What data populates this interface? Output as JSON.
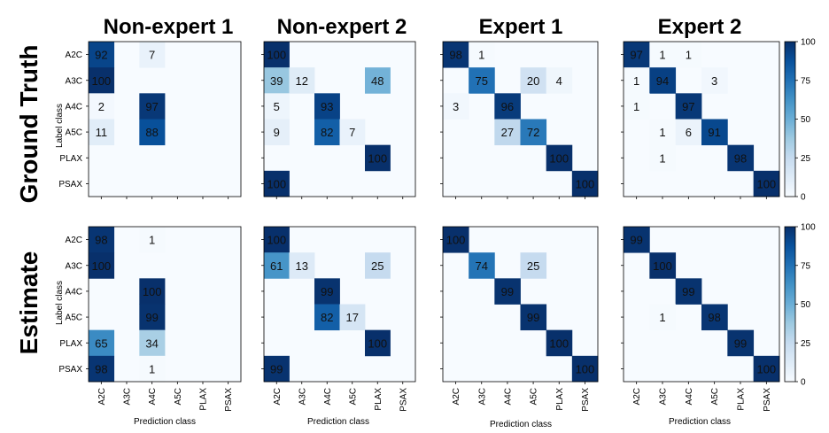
{
  "column_titles": [
    "Non-expert 1",
    "Non-expert 2",
    "Expert 1",
    "Expert 2"
  ],
  "row_titles": [
    "Ground Truth",
    "Estimate"
  ],
  "ylabel": "Label class",
  "xlabel": "Prediction class",
  "classes": [
    "A2C",
    "A3C",
    "A4C",
    "A5C",
    "PLAX",
    "PSAX"
  ],
  "colorbar": {
    "ticks": [
      0,
      25,
      50,
      75,
      100
    ],
    "colormap": "Blues",
    "range": [
      0,
      100
    ]
  },
  "chart_data": [
    {
      "type": "heatmap",
      "row": "Ground Truth",
      "title": "Non-expert 1",
      "values": [
        [
          92,
          null,
          7,
          null,
          null,
          null
        ],
        [
          100,
          null,
          null,
          null,
          null,
          null
        ],
        [
          2,
          null,
          97,
          null,
          null,
          null
        ],
        [
          11,
          null,
          88,
          null,
          null,
          null
        ],
        [
          null,
          null,
          null,
          null,
          null,
          null
        ],
        [
          null,
          null,
          null,
          null,
          null,
          null
        ]
      ]
    },
    {
      "type": "heatmap",
      "row": "Ground Truth",
      "title": "Non-expert 2",
      "values": [
        [
          100,
          null,
          null,
          null,
          null,
          null
        ],
        [
          39,
          12,
          null,
          null,
          48,
          null
        ],
        [
          5,
          null,
          93,
          null,
          null,
          null
        ],
        [
          9,
          null,
          82,
          7,
          null,
          null
        ],
        [
          null,
          null,
          null,
          null,
          100,
          null
        ],
        [
          100,
          null,
          null,
          null,
          null,
          null
        ]
      ]
    },
    {
      "type": "heatmap",
      "row": "Ground Truth",
      "title": "Expert 1",
      "values": [
        [
          98,
          1,
          null,
          null,
          null,
          null
        ],
        [
          null,
          75,
          null,
          20,
          4,
          null
        ],
        [
          3,
          null,
          96,
          null,
          null,
          null
        ],
        [
          null,
          null,
          27,
          72,
          null,
          null
        ],
        [
          null,
          null,
          null,
          null,
          100,
          null
        ],
        [
          null,
          null,
          null,
          null,
          null,
          100
        ]
      ]
    },
    {
      "type": "heatmap",
      "row": "Ground Truth",
      "title": "Expert 2",
      "values": [
        [
          97,
          1,
          1,
          null,
          null,
          null
        ],
        [
          1,
          94,
          null,
          3,
          null,
          null
        ],
        [
          1,
          null,
          97,
          null,
          null,
          null
        ],
        [
          null,
          1,
          6,
          91,
          null,
          null
        ],
        [
          null,
          1,
          null,
          null,
          98,
          null
        ],
        [
          null,
          null,
          null,
          null,
          null,
          100
        ]
      ]
    },
    {
      "type": "heatmap",
      "row": "Estimate",
      "title": "Non-expert 1",
      "values": [
        [
          98,
          null,
          1,
          null,
          null,
          null
        ],
        [
          100,
          null,
          null,
          null,
          null,
          null
        ],
        [
          null,
          null,
          100,
          null,
          null,
          null
        ],
        [
          null,
          null,
          99,
          null,
          null,
          null
        ],
        [
          65,
          null,
          34,
          null,
          null,
          null
        ],
        [
          98,
          null,
          1,
          null,
          null,
          null
        ]
      ]
    },
    {
      "type": "heatmap",
      "row": "Estimate",
      "title": "Non-expert 2",
      "values": [
        [
          100,
          null,
          null,
          null,
          null,
          null
        ],
        [
          61,
          13,
          null,
          null,
          25,
          null
        ],
        [
          null,
          null,
          99,
          null,
          null,
          null
        ],
        [
          null,
          null,
          82,
          17,
          null,
          null
        ],
        [
          null,
          null,
          null,
          null,
          100,
          null
        ],
        [
          99,
          null,
          null,
          null,
          null,
          null
        ]
      ]
    },
    {
      "type": "heatmap",
      "row": "Estimate",
      "title": "Expert 1",
      "values": [
        [
          100,
          null,
          null,
          null,
          null,
          null
        ],
        [
          null,
          74,
          null,
          25,
          null,
          null
        ],
        [
          null,
          null,
          99,
          null,
          null,
          null
        ],
        [
          null,
          null,
          null,
          99,
          null,
          null
        ],
        [
          null,
          null,
          null,
          null,
          100,
          null
        ],
        [
          null,
          null,
          null,
          null,
          null,
          100
        ]
      ]
    },
    {
      "type": "heatmap",
      "row": "Estimate",
      "title": "Expert 2",
      "values": [
        [
          99,
          null,
          null,
          null,
          null,
          null
        ],
        [
          null,
          100,
          null,
          null,
          null,
          null
        ],
        [
          null,
          null,
          99,
          null,
          null,
          null
        ],
        [
          null,
          1,
          null,
          98,
          null,
          null
        ],
        [
          null,
          null,
          null,
          null,
          99,
          null
        ],
        [
          null,
          null,
          null,
          null,
          null,
          100
        ]
      ]
    }
  ]
}
